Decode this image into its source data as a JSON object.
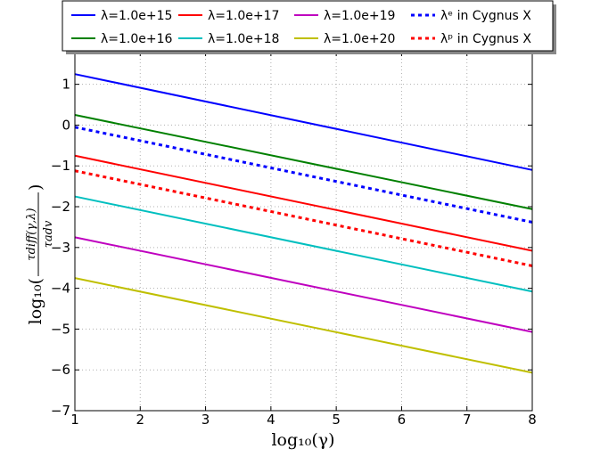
{
  "chart_data": {
    "type": "line",
    "xlabel": "log₁₀(γ)",
    "ylabel": {
      "prefix": "log₁₀(",
      "numerator": "τdiff(γ,λ)",
      "denominator": "τadv",
      "suffix": ")"
    },
    "xlim": [
      1,
      8
    ],
    "ylim": [
      -7,
      1.8
    ],
    "xticks": [
      1,
      2,
      3,
      4,
      5,
      6,
      7,
      8
    ],
    "yticks": [
      -7,
      -6,
      -5,
      -4,
      -3,
      -2,
      -1,
      0,
      1
    ],
    "grid": true,
    "legend_position": "top",
    "series": [
      {
        "label": "λ=1.0e+15",
        "color": "#0000ff",
        "style": "solid",
        "x": [
          1,
          8
        ],
        "y": [
          1.25,
          -1.1
        ]
      },
      {
        "label": "λ=1.0e+16",
        "color": "#008000",
        "style": "solid",
        "x": [
          1,
          8
        ],
        "y": [
          0.25,
          -2.06
        ]
      },
      {
        "label": "λ=1.0e+17",
        "color": "#ff0000",
        "style": "solid",
        "x": [
          1,
          8
        ],
        "y": [
          -0.75,
          -3.08
        ]
      },
      {
        "label": "λ=1.0e+18",
        "color": "#00bfbf",
        "style": "solid",
        "x": [
          1,
          8
        ],
        "y": [
          -1.75,
          -4.08
        ]
      },
      {
        "label": "λ=1.0e+19",
        "color": "#bf00bf",
        "style": "solid",
        "x": [
          1,
          8
        ],
        "y": [
          -2.75,
          -5.07
        ]
      },
      {
        "label": "λ=1.0e+20",
        "color": "#bfbf00",
        "style": "solid",
        "x": [
          1,
          8
        ],
        "y": [
          -3.75,
          -6.07
        ]
      },
      {
        "label": "λᵉ  in Cygnus X",
        "color": "#0000ff",
        "style": "dotted",
        "x": [
          1,
          8
        ],
        "y": [
          -0.05,
          -2.38
        ]
      },
      {
        "label": "λᵖ  in Cygnus X",
        "color": "#ff0000",
        "style": "dotted",
        "x": [
          1,
          8
        ],
        "y": [
          -1.12,
          -3.45
        ]
      }
    ]
  }
}
